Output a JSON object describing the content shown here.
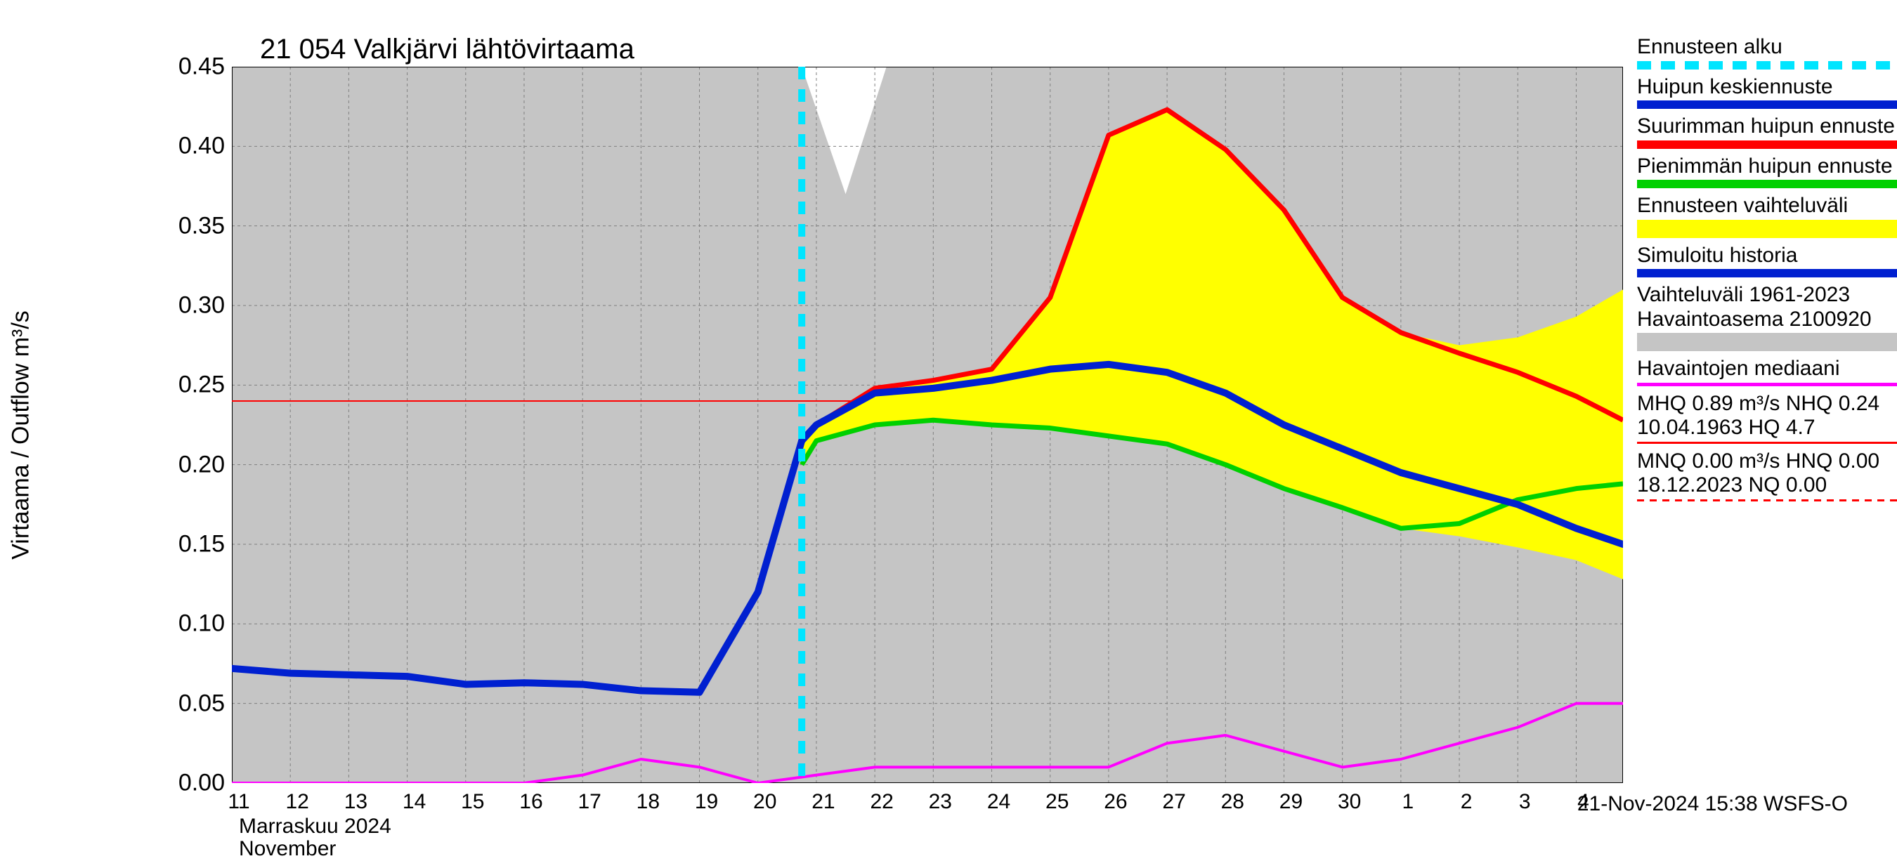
{
  "chart": {
    "title": "21 054 Valkjärvi lähtövirtaama",
    "y_axis_label": "Virtaama / Outflow    m³/s",
    "month_label_fi": "Marraskuu 2024",
    "month_label_en": "November",
    "footer": "21-Nov-2024 15:38 WSFS-O",
    "background_color": "#ffffff",
    "plot_bg_color": "#c5c5c5",
    "grid_color": "#808080",
    "ylim": [
      0.0,
      0.45
    ],
    "yticks": [
      0.0,
      0.05,
      0.1,
      0.15,
      0.2,
      0.25,
      0.3,
      0.35,
      0.4,
      0.45
    ],
    "ytick_labels": [
      "0.00",
      "0.05",
      "0.10",
      "0.15",
      "0.20",
      "0.25",
      "0.30",
      "0.35",
      "0.40",
      "0.45"
    ],
    "x_days": [
      11,
      12,
      13,
      14,
      15,
      16,
      17,
      18,
      19,
      20,
      21,
      22,
      23,
      24,
      25,
      26,
      27,
      28,
      29,
      30,
      1,
      2,
      3,
      4
    ],
    "x_major_index_mark": 20,
    "forecast_start_x": 20.75,
    "hq_ref_line": 0.24,
    "nq_ref_line": 0.0,
    "colors": {
      "forecast_start": "#00e5ff",
      "mean_peak": "#0020d0",
      "max_peak": "#ff0000",
      "min_peak": "#00d000",
      "range_fill": "#ffff00",
      "history": "#0020d0",
      "variation_band": "#c5c5c5",
      "median": "#ff00ff",
      "hq_line": "#ff0000",
      "nq_line": "#ff0000"
    },
    "line_widths": {
      "mean_peak": 10,
      "max_peak": 7,
      "min_peak": 7,
      "history": 10,
      "median": 4,
      "forecast_start": 10,
      "hq_line": 2
    },
    "series": {
      "history": [
        [
          11,
          0.072
        ],
        [
          12,
          0.069
        ],
        [
          13,
          0.068
        ],
        [
          14,
          0.067
        ],
        [
          15,
          0.062
        ],
        [
          16,
          0.063
        ],
        [
          17,
          0.062
        ],
        [
          18,
          0.058
        ],
        [
          19,
          0.057
        ],
        [
          20,
          0.12
        ],
        [
          20.75,
          0.215
        ]
      ],
      "mean_peak": [
        [
          20.75,
          0.215
        ],
        [
          21,
          0.225
        ],
        [
          22,
          0.245
        ],
        [
          23,
          0.248
        ],
        [
          24,
          0.253
        ],
        [
          25,
          0.26
        ],
        [
          26,
          0.263
        ],
        [
          27,
          0.258
        ],
        [
          28,
          0.245
        ],
        [
          29,
          0.225
        ],
        [
          30,
          0.21
        ],
        [
          31,
          0.195
        ],
        [
          32,
          0.185
        ],
        [
          33,
          0.175
        ],
        [
          34,
          0.16
        ],
        [
          34.8,
          0.15
        ]
      ],
      "max_peak": [
        [
          20.75,
          0.215
        ],
        [
          21,
          0.225
        ],
        [
          22,
          0.248
        ],
        [
          23,
          0.253
        ],
        [
          24,
          0.26
        ],
        [
          25,
          0.305
        ],
        [
          26,
          0.407
        ],
        [
          27,
          0.423
        ],
        [
          28,
          0.398
        ],
        [
          29,
          0.36
        ],
        [
          30,
          0.305
        ],
        [
          31,
          0.283
        ],
        [
          32,
          0.27
        ],
        [
          33,
          0.258
        ],
        [
          34,
          0.243
        ],
        [
          34.8,
          0.228
        ]
      ],
      "min_peak": [
        [
          20.75,
          0.2
        ],
        [
          21,
          0.215
        ],
        [
          22,
          0.225
        ],
        [
          23,
          0.228
        ],
        [
          24,
          0.225
        ],
        [
          25,
          0.223
        ],
        [
          26,
          0.218
        ],
        [
          27,
          0.213
        ],
        [
          28,
          0.2
        ],
        [
          29,
          0.185
        ],
        [
          30,
          0.173
        ],
        [
          31,
          0.16
        ],
        [
          32,
          0.163
        ],
        [
          33,
          0.178
        ],
        [
          34,
          0.185
        ],
        [
          34.8,
          0.188
        ]
      ],
      "range_upper": [
        [
          20.75,
          0.215
        ],
        [
          21,
          0.225
        ],
        [
          22,
          0.248
        ],
        [
          23,
          0.253
        ],
        [
          24,
          0.26
        ],
        [
          25,
          0.305
        ],
        [
          26,
          0.407
        ],
        [
          27,
          0.423
        ],
        [
          28,
          0.398
        ],
        [
          29,
          0.36
        ],
        [
          30,
          0.305
        ],
        [
          31,
          0.283
        ],
        [
          32,
          0.275
        ],
        [
          33,
          0.28
        ],
        [
          34,
          0.293
        ],
        [
          34.8,
          0.31
        ]
      ],
      "range_lower": [
        [
          20.75,
          0.2
        ],
        [
          21,
          0.215
        ],
        [
          22,
          0.225
        ],
        [
          23,
          0.228
        ],
        [
          24,
          0.225
        ],
        [
          25,
          0.223
        ],
        [
          26,
          0.218
        ],
        [
          27,
          0.213
        ],
        [
          28,
          0.2
        ],
        [
          29,
          0.185
        ],
        [
          30,
          0.173
        ],
        [
          31,
          0.16
        ],
        [
          32,
          0.155
        ],
        [
          33,
          0.148
        ],
        [
          34,
          0.14
        ],
        [
          34.8,
          0.128
        ]
      ],
      "median": [
        [
          11,
          0.0
        ],
        [
          12,
          0.0
        ],
        [
          13,
          0.0
        ],
        [
          14,
          0.0
        ],
        [
          15,
          0.0
        ],
        [
          16,
          0.0
        ],
        [
          17,
          0.005
        ],
        [
          18,
          0.015
        ],
        [
          19,
          0.01
        ],
        [
          20,
          0.0
        ],
        [
          21,
          0.005
        ],
        [
          22,
          0.01
        ],
        [
          23,
          0.01
        ],
        [
          24,
          0.01
        ],
        [
          25,
          0.01
        ],
        [
          26,
          0.01
        ],
        [
          27,
          0.025
        ],
        [
          28,
          0.03
        ],
        [
          29,
          0.02
        ],
        [
          30,
          0.01
        ],
        [
          31,
          0.015
        ],
        [
          32,
          0.025
        ],
        [
          33,
          0.035
        ],
        [
          34,
          0.05
        ],
        [
          34.8,
          0.05
        ]
      ],
      "variation_upper_notch": [
        [
          20.75,
          0.45
        ],
        [
          21.5,
          0.37
        ],
        [
          22.2,
          0.45
        ]
      ]
    }
  },
  "legend": {
    "items": [
      {
        "label": "Ennusteen alku",
        "type": "dash",
        "color": "#00e5ff",
        "thick": 12
      },
      {
        "label": "Huipun keskiennuste",
        "type": "line",
        "color": "#0020d0",
        "thick": 12
      },
      {
        "label": "Suurimman huipun ennuste",
        "type": "line",
        "color": "#ff0000",
        "thick": 12
      },
      {
        "label": "Pienimmän huipun ennuste",
        "type": "line",
        "color": "#00d000",
        "thick": 12
      },
      {
        "label": "Ennusteen vaihteluväli",
        "type": "area",
        "color": "#ffff00"
      },
      {
        "label": "Simuloitu historia",
        "type": "line",
        "color": "#0020d0",
        "thick": 12
      },
      {
        "label": "Vaihteluväli 1961-2023\n Havaintoasema 2100920",
        "type": "area",
        "color": "#c5c5c5"
      },
      {
        "label": "Havaintojen mediaani",
        "type": "line",
        "color": "#ff00ff",
        "thick": 5
      },
      {
        "label": "MHQ 0.89 m³/s NHQ 0.24\n10.04.1963 HQ  4.7",
        "type": "thin",
        "color": "#ff0000"
      },
      {
        "label": "MNQ 0.00 m³/s HNQ 0.00\n18.12.2023 NQ 0.00",
        "type": "thin-dash",
        "color": "#ff0000"
      }
    ]
  }
}
